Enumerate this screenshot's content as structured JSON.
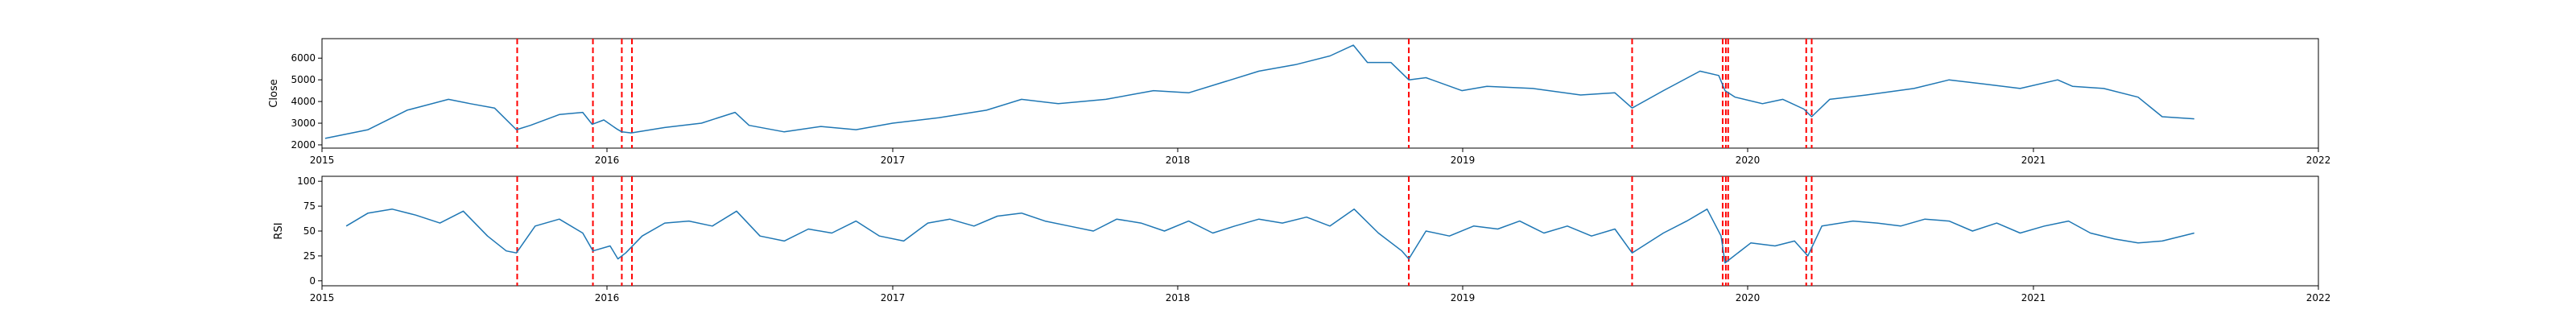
{
  "chart_data": [
    {
      "type": "line",
      "ylabel": "Close",
      "xlim": [
        "2015-01-01",
        "2022-01-01"
      ],
      "ylim": [
        1850,
        6900
      ],
      "x_tick_labels": [
        "2015",
        "2016",
        "2017",
        "2018",
        "2019",
        "2020",
        "2021",
        "2022"
      ],
      "y_ticks": [
        2000,
        3000,
        4000,
        5000,
        6000
      ],
      "y_tick_labels": [
        "2000",
        "3000",
        "4000",
        "5000",
        "6000"
      ],
      "series": [
        {
          "x": [
            "2015-01-05",
            "2015-03-01",
            "2015-04-20",
            "2015-06-12",
            "2015-07-10",
            "2015-08-10",
            "2015-09-07",
            "2015-09-25",
            "2015-11-01",
            "2015-12-01",
            "2015-12-13",
            "2015-12-28",
            "2016-01-13",
            "2016-01-20",
            "2016-02-01",
            "2016-03-15",
            "2016-05-01",
            "2016-06-13",
            "2016-07-01",
            "2016-08-15",
            "2016-10-01",
            "2016-11-15",
            "2017-01-01",
            "2017-03-01",
            "2017-05-01",
            "2017-06-15",
            "2017-08-01",
            "2017-10-01",
            "2017-12-01",
            "2018-01-15",
            "2018-03-01",
            "2018-04-15",
            "2018-06-01",
            "2018-07-15",
            "2018-08-14",
            "2018-09-01",
            "2018-10-01",
            "2018-10-24",
            "2018-11-15",
            "2018-12-31",
            "2019-02-01",
            "2019-04-01",
            "2019-06-01",
            "2019-07-15",
            "2019-08-06",
            "2019-09-15",
            "2019-11-01",
            "2019-11-25",
            "2019-12-03",
            "2019-12-16",
            "2020-01-20",
            "2020-02-15",
            "2020-03-13",
            "2020-03-23",
            "2020-04-15",
            "2020-06-01",
            "2020-08-01",
            "2020-09-15",
            "2020-11-01",
            "2020-12-15",
            "2021-02-01",
            "2021-02-20",
            "2021-04-01",
            "2021-05-15",
            "2021-06-15",
            "2021-07-26"
          ],
          "values": [
            2300,
            2700,
            3600,
            4100,
            3900,
            3700,
            2700,
            2900,
            3400,
            3500,
            2950,
            3150,
            2750,
            2600,
            2550,
            2800,
            3000,
            3500,
            2900,
            2600,
            2850,
            2700,
            3000,
            3250,
            3600,
            4100,
            3900,
            4100,
            4500,
            4400,
            4900,
            5400,
            5700,
            6100,
            6600,
            5800,
            5800,
            5000,
            5100,
            4500,
            4700,
            4600,
            4300,
            4400,
            3700,
            4500,
            5400,
            5200,
            4500,
            4200,
            3900,
            4100,
            3650,
            3300,
            4100,
            4300,
            4600,
            5000,
            4800,
            4600,
            5000,
            4700,
            4600,
            4200,
            3300,
            3200
          ]
        }
      ]
    },
    {
      "type": "line",
      "ylabel": "RSI",
      "xlim": [
        "2015-01-01",
        "2022-01-01"
      ],
      "ylim": [
        -5,
        105
      ],
      "x_tick_labels": [
        "2015",
        "2016",
        "2017",
        "2018",
        "2019",
        "2020",
        "2021",
        "2022"
      ],
      "y_ticks": [
        0,
        25,
        50,
        75,
        100
      ],
      "y_tick_labels": [
        "0",
        "25",
        "50",
        "75",
        "100"
      ],
      "series": [
        {
          "x": [
            "2015-02-01",
            "2015-03-01",
            "2015-04-01",
            "2015-05-01",
            "2015-06-01",
            "2015-07-01",
            "2015-08-01",
            "2015-08-25",
            "2015-09-07",
            "2015-10-01",
            "2015-11-01",
            "2015-12-01",
            "2015-12-14",
            "2016-01-05",
            "2016-01-15",
            "2016-01-25",
            "2016-02-15",
            "2016-03-15",
            "2016-04-15",
            "2016-05-15",
            "2016-06-15",
            "2016-07-15",
            "2016-08-15",
            "2016-09-15",
            "2016-10-15",
            "2016-11-15",
            "2016-12-15",
            "2017-01-15",
            "2017-02-15",
            "2017-03-15",
            "2017-04-15",
            "2017-05-15",
            "2017-06-15",
            "2017-07-15",
            "2017-08-15",
            "2017-09-15",
            "2017-10-15",
            "2017-11-15",
            "2017-12-15",
            "2018-01-15",
            "2018-02-15",
            "2018-03-15",
            "2018-04-15",
            "2018-05-15",
            "2018-06-15",
            "2018-07-15",
            "2018-08-15",
            "2018-09-15",
            "2018-10-15",
            "2018-10-24",
            "2018-11-15",
            "2018-12-15",
            "2019-01-15",
            "2019-02-15",
            "2019-03-15",
            "2019-04-15",
            "2019-05-15",
            "2019-06-15",
            "2019-07-15",
            "2019-08-06",
            "2019-09-15",
            "2019-10-15",
            "2019-11-10",
            "2019-11-28",
            "2019-12-03",
            "2020-01-05",
            "2020-02-05",
            "2020-03-01",
            "2020-03-18",
            "2020-04-05",
            "2020-05-15",
            "2020-06-15",
            "2020-07-15",
            "2020-08-15",
            "2020-09-15",
            "2020-10-15",
            "2020-11-15",
            "2020-12-15",
            "2021-01-15",
            "2021-02-15",
            "2021-03-15",
            "2021-04-15",
            "2021-05-15",
            "2021-06-15",
            "2021-07-26"
          ],
          "values": [
            55,
            68,
            72,
            66,
            58,
            70,
            45,
            30,
            28,
            55,
            62,
            48,
            30,
            35,
            22,
            28,
            45,
            58,
            60,
            55,
            70,
            45,
            40,
            52,
            48,
            60,
            45,
            40,
            58,
            62,
            55,
            65,
            68,
            60,
            55,
            50,
            62,
            58,
            50,
            60,
            48,
            55,
            62,
            58,
            64,
            55,
            72,
            48,
            30,
            22,
            50,
            45,
            55,
            52,
            60,
            48,
            55,
            45,
            52,
            28,
            48,
            60,
            72,
            45,
            18,
            38,
            35,
            40,
            25,
            55,
            60,
            58,
            55,
            62,
            60,
            50,
            58,
            48,
            55,
            60,
            48,
            42,
            38,
            40,
            48
          ]
        }
      ]
    }
  ],
  "vertical_markers": {
    "color": "#ff0000",
    "dates": [
      "2015-09-08",
      "2015-12-14",
      "2016-01-20",
      "2016-02-02",
      "2018-10-24",
      "2019-08-06",
      "2019-11-30",
      "2019-12-04",
      "2019-12-07",
      "2020-03-16",
      "2020-03-23"
    ]
  },
  "line_color": "#1f77b4"
}
